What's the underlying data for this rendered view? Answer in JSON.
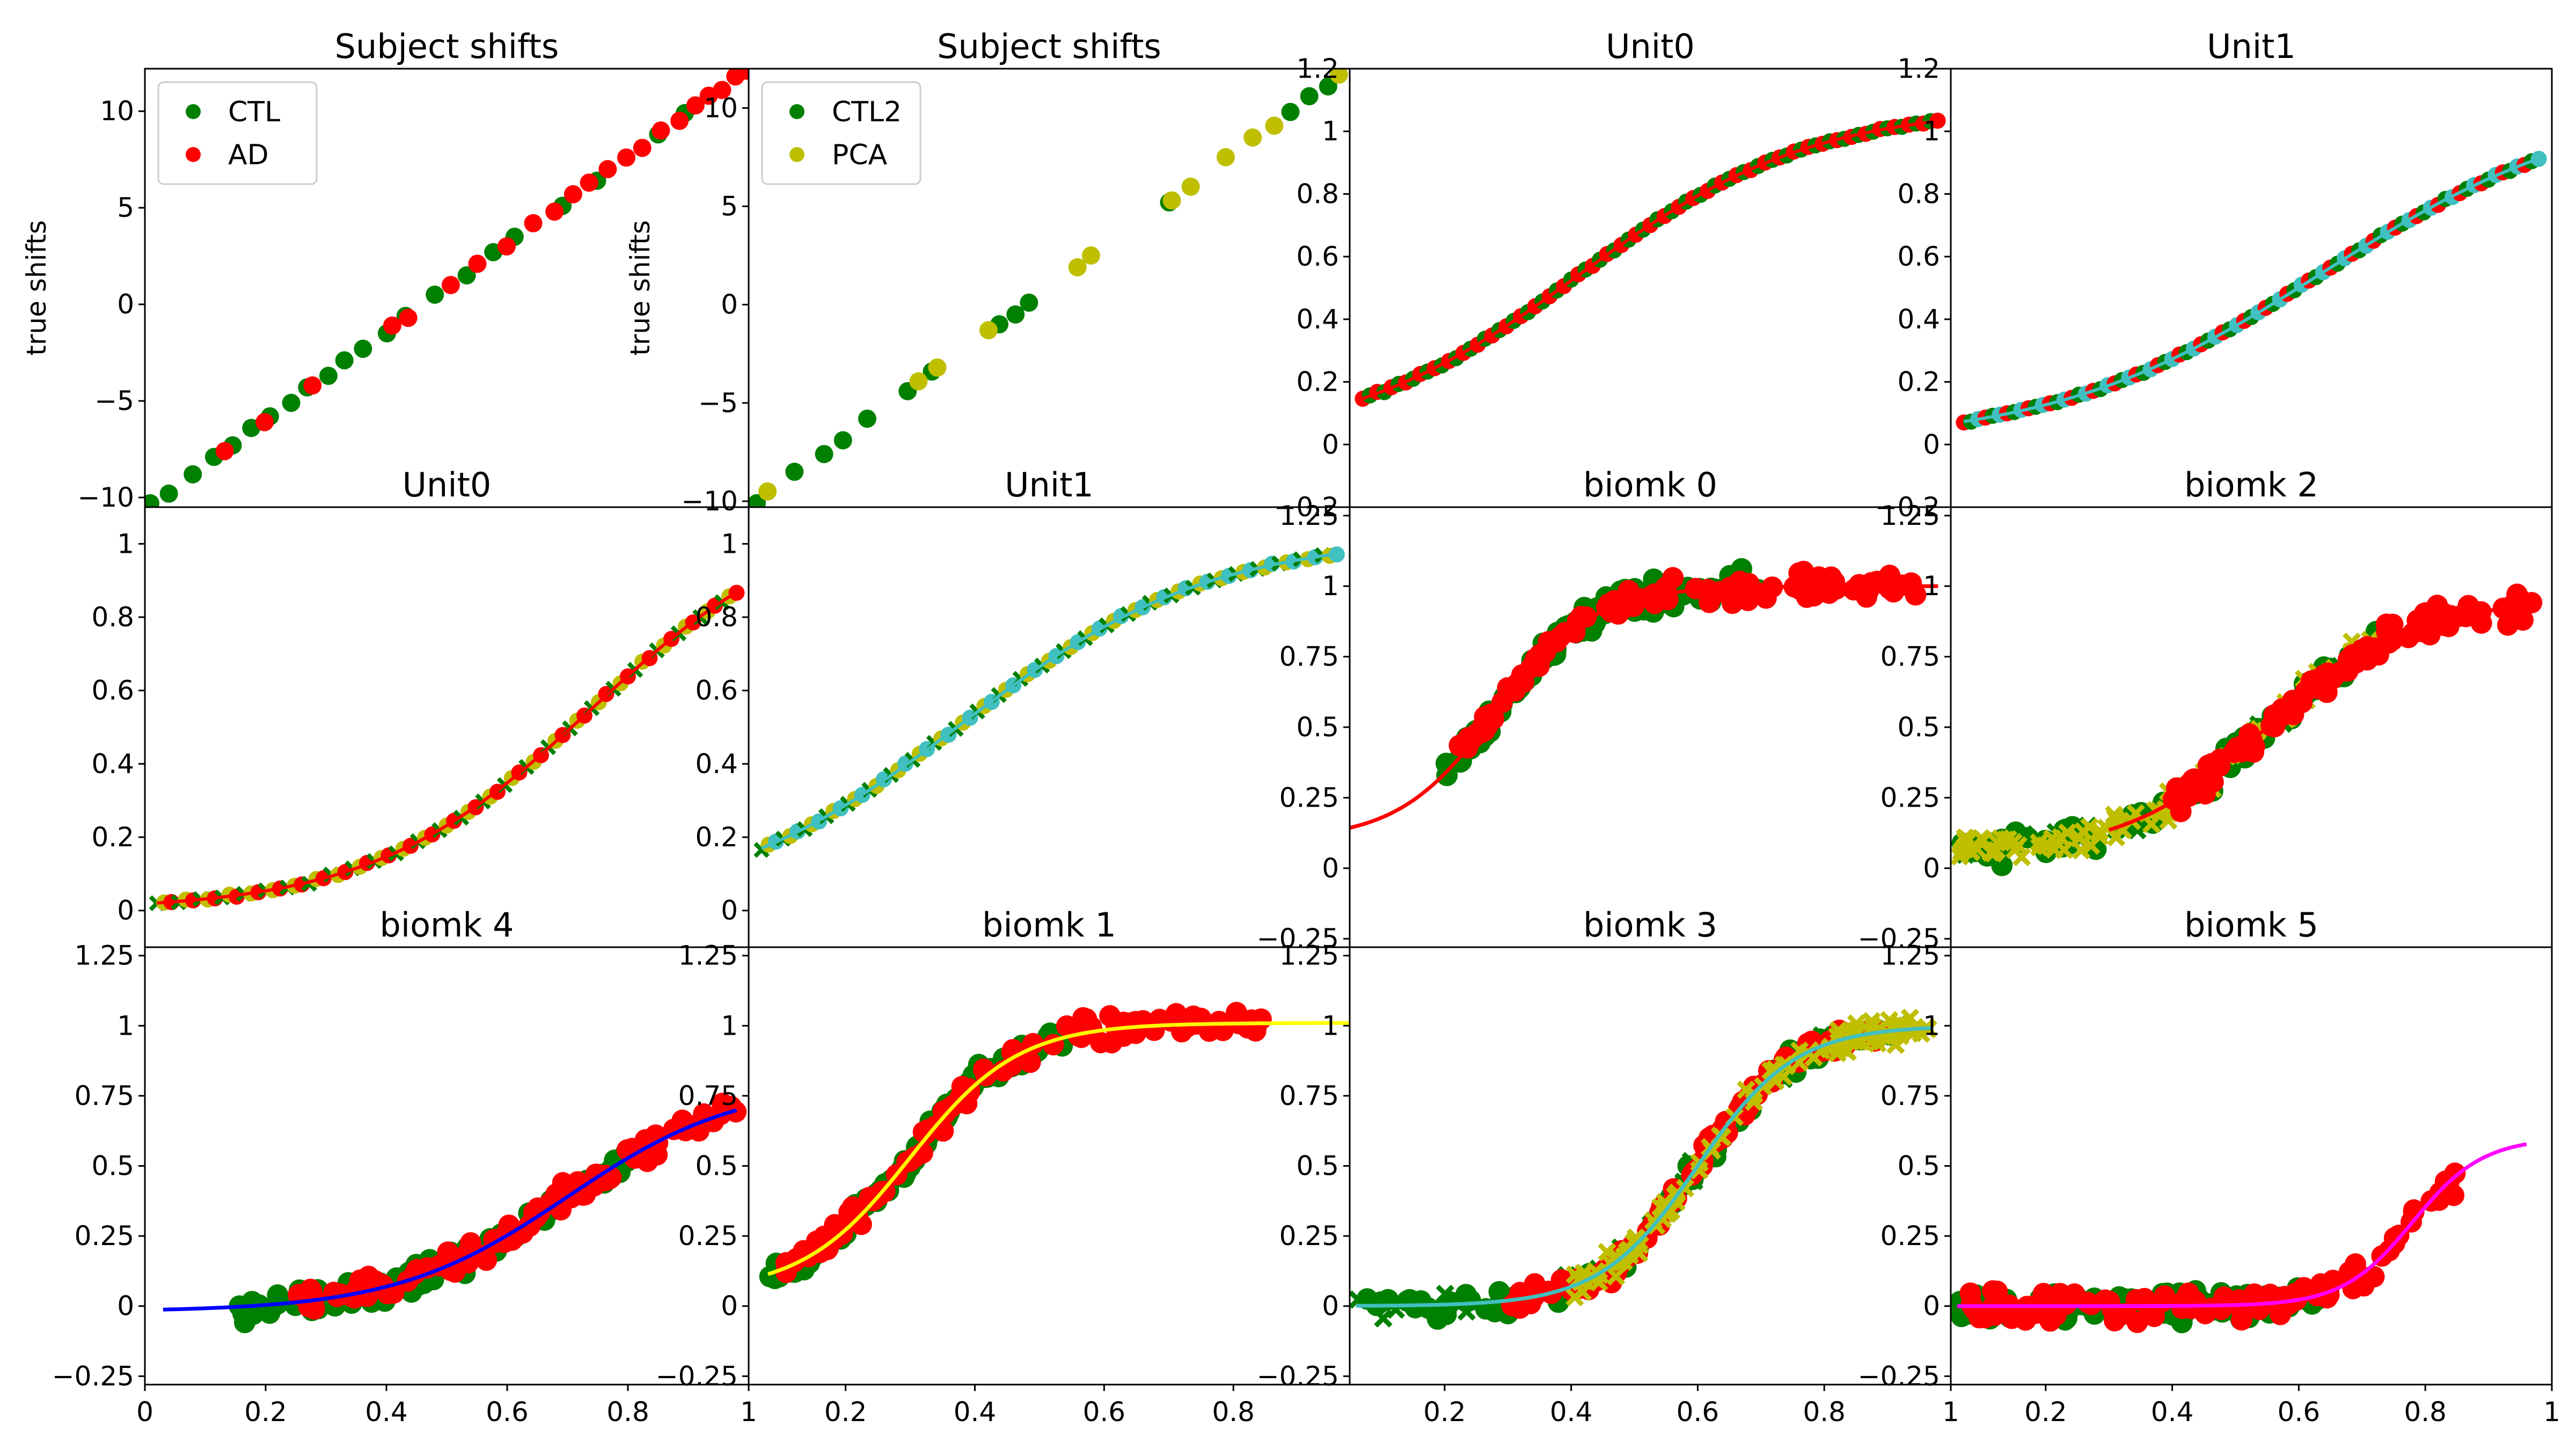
{
  "figure": {
    "background": "#ffffff",
    "colors": {
      "green": "#008000",
      "red": "#ff0000",
      "yellow": "#bfbf00",
      "cyan": "#40c0c0",
      "blue": "#0000ff",
      "magenta": "#ff00ff",
      "yellow_line": "#ffff00"
    }
  },
  "chart_data": [
    {
      "type": "scatter",
      "title": "Subject shifts",
      "xlabel": "",
      "ylabel": "true shifts",
      "ylim": [
        -10.5,
        12.2
      ],
      "xlim": [
        -10.5,
        12.2
      ],
      "yticks": [
        -10,
        -5,
        0,
        5,
        10
      ],
      "xticks": [],
      "grid": false,
      "legend_position": "top-left",
      "series": [
        {
          "name": "CTL",
          "color": "#008000",
          "points": [
            [
              -10.3,
              -10.3
            ],
            [
              -9.6,
              -9.8
            ],
            [
              -8.7,
              -8.8
            ],
            [
              -7.9,
              -7.9
            ],
            [
              -7.2,
              -7.3
            ],
            [
              -6.5,
              -6.4
            ],
            [
              -5.8,
              -5.8
            ],
            [
              -5.0,
              -5.1
            ],
            [
              -4.4,
              -4.3
            ],
            [
              -3.6,
              -3.7
            ],
            [
              -3.0,
              -2.9
            ],
            [
              -2.3,
              -2.3
            ],
            [
              -1.4,
              -1.5
            ],
            [
              -0.7,
              -0.6
            ],
            [
              0.4,
              0.5
            ],
            [
              1.6,
              1.5
            ],
            [
              2.6,
              2.7
            ],
            [
              3.4,
              3.5
            ],
            [
              5.2,
              5.1
            ],
            [
              6.5,
              6.4
            ],
            [
              8.8,
              8.8
            ],
            [
              9.8,
              9.9
            ]
          ]
        },
        {
          "name": "AD",
          "color": "#ff0000",
          "points": [
            [
              -7.5,
              -7.6
            ],
            [
              -6.0,
              -6.1
            ],
            [
              -4.2,
              -4.2
            ],
            [
              -1.2,
              -1.1
            ],
            [
              -0.6,
              -0.7
            ],
            [
              1.0,
              1.0
            ],
            [
              2.0,
              2.1
            ],
            [
              3.1,
              3.0
            ],
            [
              4.1,
              4.2
            ],
            [
              4.9,
              4.8
            ],
            [
              5.6,
              5.7
            ],
            [
              6.2,
              6.3
            ],
            [
              6.9,
              7.0
            ],
            [
              7.6,
              7.6
            ],
            [
              8.2,
              8.1
            ],
            [
              8.9,
              9.0
            ],
            [
              9.6,
              9.5
            ],
            [
              10.2,
              10.3
            ],
            [
              10.7,
              10.8
            ],
            [
              11.2,
              11.1
            ],
            [
              11.7,
              11.8
            ],
            [
              12.1,
              12.1
            ]
          ]
        }
      ]
    },
    {
      "type": "scatter",
      "title": "Subject shifts",
      "xlabel": "",
      "ylabel": "true shifts",
      "ylim": [
        -10.3,
        12.0
      ],
      "xlim": [
        -10.3,
        12.0
      ],
      "yticks": [
        -10,
        -5,
        0,
        5,
        10
      ],
      "xticks": [],
      "grid": false,
      "legend_position": "top-left",
      "series": [
        {
          "name": "CTL2",
          "color": "#008000",
          "points": [
            [
              -10.0,
              -10.1
            ],
            [
              -8.6,
              -8.5
            ],
            [
              -7.5,
              -7.6
            ],
            [
              -6.8,
              -6.9
            ],
            [
              -5.9,
              -5.8
            ],
            [
              -4.4,
              -4.4
            ],
            [
              -3.5,
              -3.4
            ],
            [
              -1.0,
              -1.0
            ],
            [
              -0.4,
              -0.5
            ],
            [
              0.1,
              0.1
            ],
            [
              5.3,
              5.2
            ],
            [
              9.8,
              9.8
            ],
            [
              10.5,
              10.6
            ],
            [
              11.2,
              11.1
            ]
          ]
        },
        {
          "name": "PCA",
          "color": "#bfbf00",
          "points": [
            [
              -9.6,
              -9.5
            ],
            [
              -4.0,
              -3.9
            ],
            [
              -3.3,
              -3.2
            ],
            [
              -1.4,
              -1.3
            ],
            [
              1.9,
              1.9
            ],
            [
              2.4,
              2.5
            ],
            [
              5.4,
              5.3
            ],
            [
              6.1,
              6.0
            ],
            [
              7.4,
              7.5
            ],
            [
              8.4,
              8.5
            ],
            [
              9.2,
              9.1
            ],
            [
              11.6,
              11.7
            ]
          ]
        }
      ]
    },
    {
      "type": "scatter",
      "title": "Unit0",
      "xlabel": "",
      "ylabel": "",
      "ylim": [
        -0.2,
        1.2
      ],
      "xlim": [
        0.05,
        0.97
      ],
      "yticks": [
        -0.2,
        0.0,
        0.2,
        0.4,
        0.6,
        0.8,
        1.0,
        1.2
      ],
      "xticks": [],
      "grid": false,
      "curve": {
        "center": 0.4,
        "slope": 5.6,
        "low": 0.0,
        "high": 1.08
      },
      "series": [
        {
          "name": "",
          "color": "#ff0000"
        },
        {
          "name": "",
          "color": "#008000"
        }
      ]
    },
    {
      "type": "scatter",
      "title": "Unit1",
      "xlabel": "",
      "ylabel": "",
      "ylim": [
        -0.2,
        1.2
      ],
      "xlim": [
        0.05,
        0.97
      ],
      "yticks": [
        -0.2,
        0.0,
        0.2,
        0.4,
        0.6,
        0.8,
        1.0,
        1.2
      ],
      "xticks": [],
      "grid": false,
      "curve": {
        "center": 0.62,
        "slope": 4.8,
        "low": 0.0,
        "high": 1.1
      },
      "series": [
        {
          "name": "",
          "color": "#ff0000"
        },
        {
          "name": "",
          "color": "#008000"
        },
        {
          "name": "",
          "color": "#40c0c0"
        }
      ]
    },
    {
      "type": "scatter",
      "title": "Unit0",
      "xlabel": "",
      "ylabel": "",
      "ylim": [
        -0.1,
        1.1
      ],
      "xlim": [
        -0.02,
        0.98
      ],
      "yticks": [
        0.0,
        0.2,
        0.4,
        0.6,
        0.8,
        1.0
      ],
      "xticks": [],
      "grid": false,
      "curve": {
        "center": 0.72,
        "slope": 5.5,
        "low": 0.0,
        "high": 1.1
      },
      "series": [
        {
          "name": "",
          "color": "#008000"
        },
        {
          "name": "",
          "color": "#bfbf00"
        },
        {
          "name": "",
          "color": "#ff0000"
        }
      ]
    },
    {
      "type": "scatter",
      "title": "Unit1",
      "xlabel": "",
      "ylabel": "",
      "ylim": [
        -0.1,
        1.1
      ],
      "xlim": [
        0.05,
        0.98
      ],
      "yticks": [
        0.0,
        0.2,
        0.4,
        0.6,
        0.8,
        1.0
      ],
      "xticks": [],
      "grid": false,
      "curve": {
        "center": 0.38,
        "slope": 5.2,
        "low": 0.0,
        "high": 1.02
      },
      "series": [
        {
          "name": "",
          "color": "#008000"
        },
        {
          "name": "",
          "color": "#bfbf00"
        },
        {
          "name": "",
          "color": "#40c0c0"
        }
      ]
    },
    {
      "type": "scatter",
      "title": "biomk 0",
      "xlabel": "",
      "ylabel": "",
      "ylim": [
        -0.28,
        1.28
      ],
      "xlim": [
        0.05,
        1.0
      ],
      "yticks": [
        -0.25,
        0.0,
        0.25,
        0.5,
        0.75,
        1.0,
        1.25
      ],
      "xticks": [],
      "grid": false,
      "curve": {
        "center": 0.28,
        "slope": 13,
        "low": 0.1,
        "high": 1.0,
        "x0": 0.05,
        "x1": 0.98
      },
      "series": [
        {
          "name": "",
          "color": "#008000",
          "x": [
            0.2,
            0.7
          ]
        },
        {
          "name": "",
          "color": "#ff0000",
          "x": [
            0.22,
            0.95
          ]
        }
      ]
    },
    {
      "type": "scatter",
      "title": "biomk 2",
      "xlabel": "",
      "ylabel": "",
      "ylim": [
        -0.28,
        1.28
      ],
      "xlim": [
        0.05,
        1.0
      ],
      "yticks": [
        -0.25,
        0.0,
        0.25,
        0.5,
        0.75,
        1.0,
        1.25
      ],
      "xticks": [],
      "grid": false,
      "curve": {
        "center": 0.55,
        "slope": 9,
        "low": 0.05,
        "high": 0.95,
        "x0": 0.3,
        "x1": 0.98
      },
      "series": [
        {
          "name": "",
          "color": "#008000",
          "x": [
            0.06,
            0.75
          ]
        },
        {
          "name": "",
          "color": "#bfbf00",
          "x": [
            0.06,
            0.72
          ]
        },
        {
          "name": "",
          "color": "#ff0000",
          "x": [
            0.4,
            0.98
          ]
        }
      ]
    },
    {
      "type": "scatter",
      "title": "biomk 4",
      "xlabel": "",
      "ylabel": "",
      "ylim": [
        -0.28,
        1.28
      ],
      "xlim": [
        0.0,
        1.0
      ],
      "yticks": [
        -0.25,
        0.0,
        0.25,
        0.5,
        0.75,
        1.0,
        1.25
      ],
      "xticks": [
        0.0,
        0.2,
        0.4,
        0.6,
        0.8,
        1.0
      ],
      "grid": false,
      "curve": {
        "center": 0.7,
        "slope": 7,
        "low": -0.02,
        "high": 0.8,
        "x0": 0.03,
        "x1": 0.98
      },
      "series": [
        {
          "name": "",
          "color": "#008000",
          "x": [
            0.15,
            0.8
          ]
        },
        {
          "name": "",
          "color": "#ff0000",
          "x": [
            0.25,
            0.98
          ]
        },
        {
          "name": "",
          "color": "#0000ff"
        }
      ]
    },
    {
      "type": "scatter",
      "title": "biomk 1",
      "xlabel": "",
      "ylabel": "",
      "ylim": [
        -0.28,
        1.28
      ],
      "xlim": [
        0.05,
        0.98
      ],
      "yticks": [
        -0.25,
        0.0,
        0.25,
        0.5,
        0.75,
        1.0,
        1.25
      ],
      "xticks": [
        0.2,
        0.4,
        0.6,
        0.8
      ],
      "grid": false,
      "curve": {
        "center": 0.3,
        "slope": 12,
        "low": 0.05,
        "high": 1.01,
        "x0": 0.08,
        "x1": 0.98
      },
      "series": [
        {
          "name": "",
          "color": "#008000",
          "x": [
            0.08,
            0.55
          ]
        },
        {
          "name": "",
          "color": "#ff0000",
          "x": [
            0.1,
            0.85
          ]
        },
        {
          "name": "",
          "color": "#ffff00"
        }
      ]
    },
    {
      "type": "scatter",
      "title": "biomk 3",
      "xlabel": "",
      "ylabel": "",
      "ylim": [
        -0.28,
        1.28
      ],
      "xlim": [
        0.05,
        1.0
      ],
      "yticks": [
        -0.25,
        0.0,
        0.25,
        0.5,
        0.75,
        1.0,
        1.25
      ],
      "xticks": [
        0.2,
        0.4,
        0.6,
        0.8,
        1.0
      ],
      "grid": false,
      "curve": {
        "center": 0.6,
        "slope": 13,
        "low": 0.0,
        "high": 1.0,
        "x0": 0.06,
        "x1": 0.97
      },
      "series": [
        {
          "name": "",
          "color": "#008000",
          "x": [
            0.06,
            0.92
          ]
        },
        {
          "name": "",
          "color": "#ff0000",
          "x": [
            0.3,
            0.92
          ]
        },
        {
          "name": "",
          "color": "#bfbf00",
          "x": [
            0.4,
            0.97
          ]
        },
        {
          "name": "",
          "color": "#40c0c0"
        }
      ]
    },
    {
      "type": "scatter",
      "title": "biomk 5",
      "xlabel": "",
      "ylabel": "",
      "ylim": [
        -0.28,
        1.28
      ],
      "xlim": [
        0.05,
        1.0
      ],
      "yticks": [
        -0.25,
        0.0,
        0.25,
        0.5,
        0.75,
        1.0,
        1.25
      ],
      "xticks": [
        0.2,
        0.4,
        0.6,
        0.8,
        1.0
      ],
      "grid": false,
      "curve": {
        "center": 0.78,
        "slope": 18,
        "low": 0.0,
        "high": 0.6,
        "x0": 0.06,
        "x1": 0.96
      },
      "series": [
        {
          "name": "",
          "color": "#008000",
          "x": [
            0.06,
            0.65
          ]
        },
        {
          "name": "",
          "color": "#ff0000",
          "x": [
            0.08,
            0.85
          ]
        },
        {
          "name": "",
          "color": "#ff00ff"
        }
      ]
    }
  ]
}
